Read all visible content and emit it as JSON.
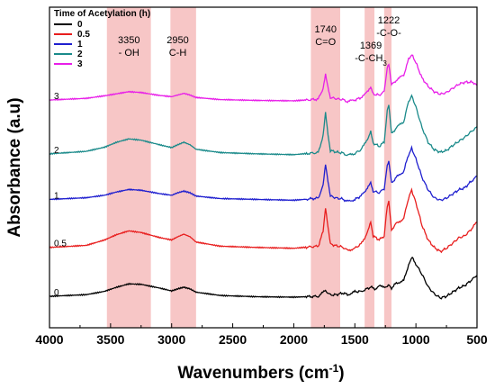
{
  "chart_data": {
    "type": "line",
    "xlabel": "Wavenumbers (cm",
    "xlabel_sup": "-1",
    "xlabel_end": ")",
    "ylabel": "Absorbance (a.u)",
    "xlim": [
      4000,
      500
    ],
    "x_reversed": true,
    "x_ticks": [
      "4000",
      "3500",
      "3000",
      "2500",
      "2000",
      "1500",
      "1000",
      "500"
    ],
    "legend": {
      "title": "Time of Acetylation (h)",
      "placement": "top-left"
    },
    "bands": [
      {
        "from": 3530,
        "to": 3170,
        "label_line1": "3350",
        "label_line2": "- OH"
      },
      {
        "from": 3010,
        "to": 2800,
        "label_line1": "2950",
        "label_line2": "C-H"
      },
      {
        "from": 1860,
        "to": 1620,
        "label_line1": "1740",
        "label_line2": "C=O"
      },
      {
        "from": 1420,
        "to": 1340,
        "label_line1": "1369",
        "label_line2": "-C-CH",
        "label_sub": "3"
      },
      {
        "from": 1260,
        "to": 1200,
        "label_line1": "1222",
        "label_line2": "-C-O-"
      }
    ],
    "series": [
      {
        "name": "0",
        "offset_label": "0",
        "color": "#000000",
        "offset": 0,
        "points": [
          [
            4000,
            0.02
          ],
          [
            3700,
            0.06
          ],
          [
            3550,
            0.14
          ],
          [
            3450,
            0.24
          ],
          [
            3350,
            0.32
          ],
          [
            3250,
            0.31
          ],
          [
            3100,
            0.22
          ],
          [
            3000,
            0.15
          ],
          [
            2950,
            0.2
          ],
          [
            2900,
            0.24
          ],
          [
            2850,
            0.2
          ],
          [
            2800,
            0.12
          ],
          [
            2600,
            0.04
          ],
          [
            2300,
            0.01
          ],
          [
            2000,
            0.0
          ],
          [
            1800,
            0.02
          ],
          [
            1740,
            0.16
          ],
          [
            1700,
            0.05
          ],
          [
            1650,
            0.06
          ],
          [
            1600,
            0.1
          ],
          [
            1560,
            0.06
          ],
          [
            1500,
            0.13
          ],
          [
            1450,
            0.14
          ],
          [
            1420,
            0.18
          ],
          [
            1370,
            0.24
          ],
          [
            1330,
            0.2
          ],
          [
            1300,
            0.26
          ],
          [
            1240,
            0.26
          ],
          [
            1220,
            0.32
          ],
          [
            1200,
            0.22
          ],
          [
            1160,
            0.34
          ],
          [
            1100,
            0.4
          ],
          [
            1060,
            0.78
          ],
          [
            1030,
            0.95
          ],
          [
            1000,
            0.8
          ],
          [
            950,
            0.55
          ],
          [
            900,
            0.25
          ],
          [
            850,
            0.08
          ],
          [
            800,
            -0.02
          ],
          [
            750,
            0.02
          ],
          [
            700,
            0.12
          ],
          [
            650,
            0.22
          ],
          [
            600,
            0.28
          ],
          [
            550,
            0.4
          ],
          [
            510,
            0.5
          ],
          [
            500,
            0.52
          ]
        ]
      },
      {
        "name": "0.5",
        "offset_label": "0.5",
        "color": "#e81e1e",
        "offset": 1.18,
        "points": [
          [
            4000,
            0.02
          ],
          [
            3700,
            0.07
          ],
          [
            3550,
            0.2
          ],
          [
            3450,
            0.33
          ],
          [
            3350,
            0.42
          ],
          [
            3250,
            0.38
          ],
          [
            3100,
            0.26
          ],
          [
            3000,
            0.2
          ],
          [
            2950,
            0.28
          ],
          [
            2900,
            0.34
          ],
          [
            2850,
            0.28
          ],
          [
            2800,
            0.15
          ],
          [
            2600,
            0.05
          ],
          [
            2300,
            0.02
          ],
          [
            2000,
            0.0
          ],
          [
            1800,
            0.05
          ],
          [
            1760,
            0.4
          ],
          [
            1740,
            0.96
          ],
          [
            1720,
            0.5
          ],
          [
            1700,
            0.1
          ],
          [
            1650,
            0.06
          ],
          [
            1600,
            0.03
          ],
          [
            1560,
            -0.05
          ],
          [
            1500,
            0.0
          ],
          [
            1450,
            0.1
          ],
          [
            1420,
            0.25
          ],
          [
            1390,
            0.45
          ],
          [
            1370,
            0.65
          ],
          [
            1350,
            0.3
          ],
          [
            1300,
            0.2
          ],
          [
            1260,
            0.3
          ],
          [
            1235,
            1.0
          ],
          [
            1222,
            1.12
          ],
          [
            1200,
            0.45
          ],
          [
            1160,
            0.6
          ],
          [
            1100,
            0.72
          ],
          [
            1060,
            1.22
          ],
          [
            1035,
            1.4
          ],
          [
            1000,
            1.1
          ],
          [
            950,
            0.55
          ],
          [
            900,
            0.2
          ],
          [
            850,
            0.02
          ],
          [
            800,
            -0.08
          ],
          [
            750,
            0.0
          ],
          [
            700,
            0.12
          ],
          [
            650,
            0.25
          ],
          [
            600,
            0.3
          ],
          [
            550,
            0.45
          ],
          [
            510,
            0.6
          ],
          [
            500,
            0.62
          ]
        ]
      },
      {
        "name": "1",
        "offset_label": "1",
        "color": "#1f1fcf",
        "offset": 2.34,
        "points": [
          [
            4000,
            0.02
          ],
          [
            3700,
            0.06
          ],
          [
            3550,
            0.12
          ],
          [
            3450,
            0.2
          ],
          [
            3350,
            0.26
          ],
          [
            3250,
            0.24
          ],
          [
            3100,
            0.16
          ],
          [
            3000,
            0.12
          ],
          [
            2950,
            0.18
          ],
          [
            2900,
            0.22
          ],
          [
            2850,
            0.18
          ],
          [
            2800,
            0.1
          ],
          [
            2600,
            0.04
          ],
          [
            2300,
            0.02
          ],
          [
            2000,
            0.0
          ],
          [
            1800,
            0.05
          ],
          [
            1760,
            0.35
          ],
          [
            1740,
            0.85
          ],
          [
            1720,
            0.45
          ],
          [
            1700,
            0.1
          ],
          [
            1650,
            0.05
          ],
          [
            1600,
            0.03
          ],
          [
            1560,
            -0.03
          ],
          [
            1500,
            0.02
          ],
          [
            1450,
            0.1
          ],
          [
            1420,
            0.2
          ],
          [
            1390,
            0.35
          ],
          [
            1370,
            0.45
          ],
          [
            1350,
            0.22
          ],
          [
            1300,
            0.18
          ],
          [
            1260,
            0.28
          ],
          [
            1235,
            0.82
          ],
          [
            1222,
            0.92
          ],
          [
            1200,
            0.42
          ],
          [
            1160,
            0.55
          ],
          [
            1100,
            0.7
          ],
          [
            1060,
            1.1
          ],
          [
            1035,
            1.25
          ],
          [
            1000,
            1.0
          ],
          [
            950,
            0.55
          ],
          [
            900,
            0.25
          ],
          [
            850,
            0.06
          ],
          [
            800,
            0.0
          ],
          [
            750,
            0.05
          ],
          [
            700,
            0.15
          ],
          [
            650,
            0.25
          ],
          [
            600,
            0.3
          ],
          [
            550,
            0.45
          ],
          [
            510,
            0.55
          ],
          [
            500,
            0.58
          ]
        ]
      },
      {
        "name": "2",
        "offset_label": "2",
        "color": "#1a8a8a",
        "offset": 3.44,
        "points": [
          [
            4000,
            0.02
          ],
          [
            3700,
            0.08
          ],
          [
            3550,
            0.18
          ],
          [
            3450,
            0.3
          ],
          [
            3350,
            0.38
          ],
          [
            3250,
            0.35
          ],
          [
            3100,
            0.24
          ],
          [
            3000,
            0.17
          ],
          [
            2950,
            0.24
          ],
          [
            2900,
            0.3
          ],
          [
            2850,
            0.24
          ],
          [
            2800,
            0.13
          ],
          [
            2600,
            0.05
          ],
          [
            2300,
            0.02
          ],
          [
            2000,
            0.0
          ],
          [
            1800,
            0.05
          ],
          [
            1760,
            0.45
          ],
          [
            1740,
            1.02
          ],
          [
            1720,
            0.5
          ],
          [
            1700,
            0.1
          ],
          [
            1650,
            0.06
          ],
          [
            1600,
            0.04
          ],
          [
            1560,
            -0.02
          ],
          [
            1500,
            0.03
          ],
          [
            1450,
            0.12
          ],
          [
            1420,
            0.25
          ],
          [
            1390,
            0.42
          ],
          [
            1370,
            0.58
          ],
          [
            1350,
            0.28
          ],
          [
            1300,
            0.2
          ],
          [
            1260,
            0.3
          ],
          [
            1235,
            1.05
          ],
          [
            1222,
            1.2
          ],
          [
            1200,
            0.5
          ],
          [
            1160,
            0.65
          ],
          [
            1100,
            0.8
          ],
          [
            1060,
            1.28
          ],
          [
            1035,
            1.42
          ],
          [
            1000,
            1.15
          ],
          [
            950,
            0.65
          ],
          [
            900,
            0.3
          ],
          [
            850,
            0.12
          ],
          [
            800,
            0.06
          ],
          [
            750,
            0.1
          ],
          [
            700,
            0.22
          ],
          [
            650,
            0.32
          ],
          [
            600,
            0.42
          ],
          [
            550,
            0.55
          ],
          [
            510,
            0.65
          ],
          [
            500,
            0.68
          ]
        ]
      },
      {
        "name": "3",
        "offset_label": "3",
        "color": "#e81ee8",
        "offset": 4.74,
        "points": [
          [
            4000,
            0.02
          ],
          [
            3700,
            0.06
          ],
          [
            3550,
            0.12
          ],
          [
            3450,
            0.17
          ],
          [
            3350,
            0.22
          ],
          [
            3250,
            0.2
          ],
          [
            3100,
            0.13
          ],
          [
            3000,
            0.1
          ],
          [
            2950,
            0.14
          ],
          [
            2900,
            0.18
          ],
          [
            2850,
            0.14
          ],
          [
            2800,
            0.08
          ],
          [
            2600,
            0.03
          ],
          [
            2300,
            0.01
          ],
          [
            2000,
            0.0
          ],
          [
            1800,
            0.04
          ],
          [
            1760,
            0.3
          ],
          [
            1740,
            0.66
          ],
          [
            1720,
            0.35
          ],
          [
            1700,
            0.08
          ],
          [
            1650,
            0.05
          ],
          [
            1600,
            0.03
          ],
          [
            1560,
            -0.02
          ],
          [
            1500,
            0.02
          ],
          [
            1450,
            0.08
          ],
          [
            1420,
            0.14
          ],
          [
            1390,
            0.25
          ],
          [
            1370,
            0.32
          ],
          [
            1350,
            0.16
          ],
          [
            1300,
            0.14
          ],
          [
            1260,
            0.22
          ],
          [
            1235,
            0.8
          ],
          [
            1222,
            0.9
          ],
          [
            1200,
            0.38
          ],
          [
            1160,
            0.5
          ],
          [
            1100,
            0.62
          ],
          [
            1060,
            1.0
          ],
          [
            1035,
            1.12
          ],
          [
            1000,
            0.92
          ],
          [
            950,
            0.55
          ],
          [
            900,
            0.35
          ],
          [
            850,
            0.22
          ],
          [
            800,
            0.16
          ],
          [
            750,
            0.2
          ],
          [
            700,
            0.3
          ],
          [
            650,
            0.4
          ],
          [
            600,
            0.45
          ],
          [
            550,
            0.45
          ],
          [
            510,
            0.42
          ],
          [
            500,
            0.4
          ]
        ]
      }
    ]
  }
}
